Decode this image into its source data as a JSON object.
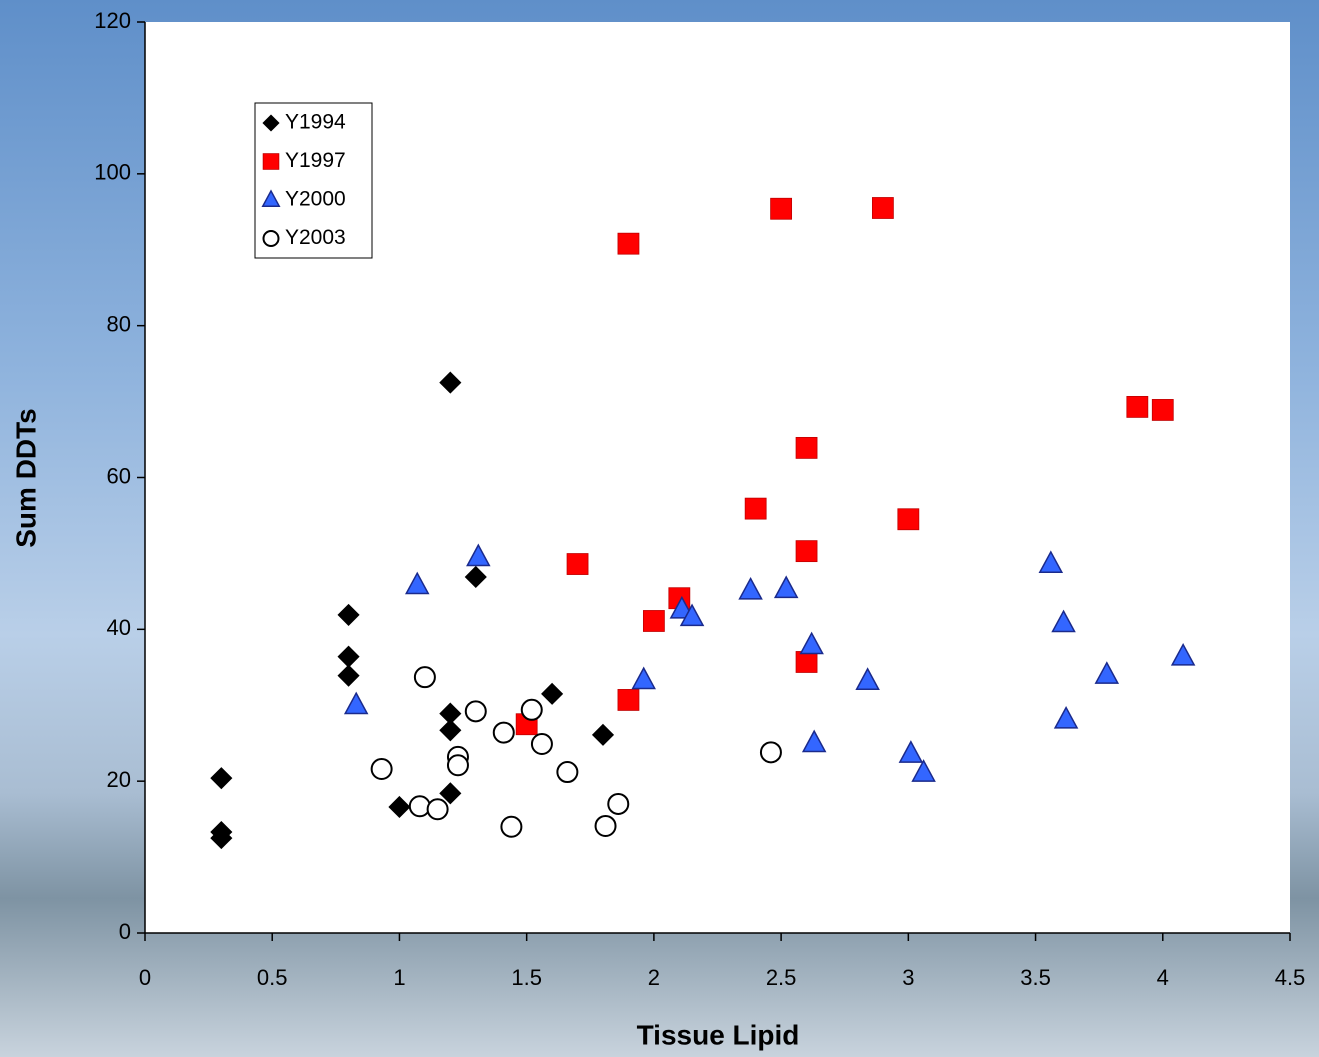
{
  "chart_data": {
    "type": "scatter",
    "x_label": "Tissue Lipid",
    "y_label": "Sum DDTs",
    "xlim": [
      0,
      4.5
    ],
    "xticks": [
      0,
      0.5,
      1,
      1.5,
      2,
      2.5,
      3,
      3.5,
      4,
      4.5
    ],
    "ylim": [
      0,
      120
    ],
    "yticks": [
      0,
      20,
      40,
      60,
      80,
      100,
      120
    ],
    "grid": false,
    "legend": "upper left",
    "series": [
      {
        "name": "Y1994",
        "color": "#000000",
        "marker": "diamond",
        "x": [
          0.3,
          0.3,
          0.3,
          0.8,
          0.8,
          0.8,
          1.0,
          1.2,
          1.2,
          1.2,
          1.2,
          1.3,
          1.6,
          1.8
        ],
        "values": [
          20.4,
          13.3,
          12.5,
          41.9,
          36.4,
          33.9,
          16.6,
          72.5,
          28.9,
          26.7,
          18.4,
          46.9,
          31.5,
          26.1
        ]
      },
      {
        "name": "Y1997",
        "color": "#ff0000",
        "marker": "square",
        "x": [
          1.9,
          2.5,
          2.9,
          3.9,
          4.0,
          2.6,
          2.4,
          3.0,
          2.6,
          1.7,
          2.1,
          2.0,
          2.6,
          1.9,
          1.5
        ],
        "values": [
          90.8,
          95.4,
          95.5,
          69.3,
          68.9,
          63.9,
          55.9,
          54.5,
          50.3,
          48.6,
          44.1,
          41.1,
          35.7,
          30.7,
          27.5
        ]
      },
      {
        "name": "Y2000",
        "color": "#3366ff",
        "marker": "triangle",
        "x": [
          0.83,
          1.07,
          1.31,
          1.96,
          2.11,
          2.15,
          2.38,
          2.52,
          2.62,
          2.63,
          2.84,
          3.01,
          3.06,
          3.56,
          3.61,
          3.62,
          3.78,
          4.08
        ],
        "values": [
          30.0,
          45.8,
          49.5,
          33.3,
          42.6,
          41.6,
          45.1,
          45.3,
          37.9,
          25.0,
          33.2,
          23.6,
          21.1,
          48.6,
          40.8,
          28.1,
          34.0,
          36.4
        ]
      },
      {
        "name": "Y2003",
        "color": "#ffffff",
        "marker": "circle",
        "x": [
          0.93,
          1.08,
          1.15,
          1.1,
          1.3,
          1.23,
          1.23,
          1.41,
          1.44,
          1.52,
          1.56,
          1.66,
          1.81,
          1.86,
          2.46
        ],
        "values": [
          21.6,
          16.7,
          16.3,
          33.7,
          29.2,
          23.2,
          22.1,
          26.4,
          14.0,
          29.4,
          24.9,
          21.2,
          14.1,
          17.0,
          23.8
        ]
      }
    ]
  }
}
